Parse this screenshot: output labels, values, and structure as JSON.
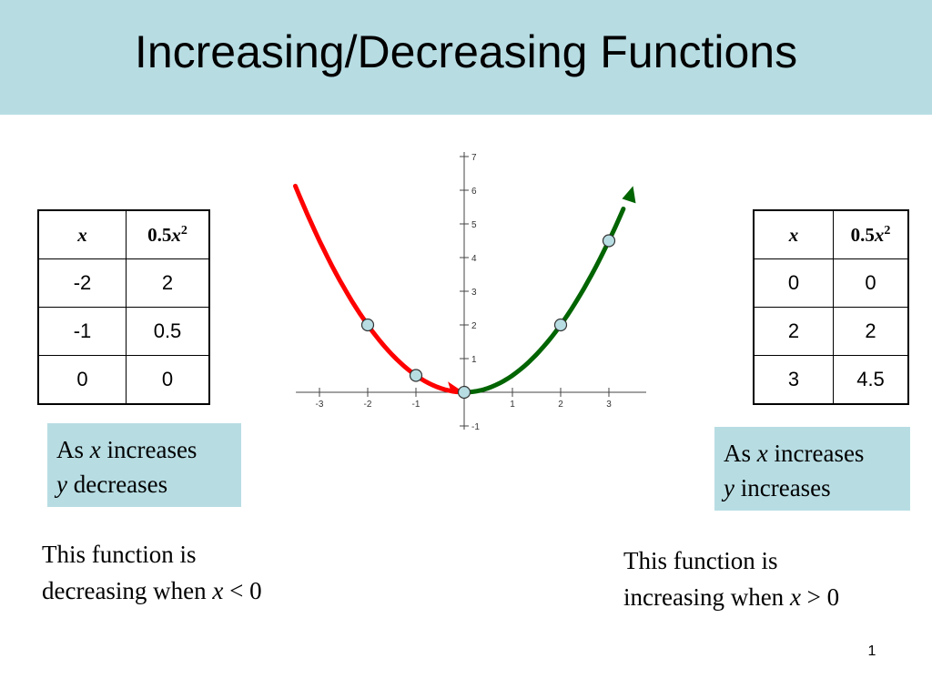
{
  "title": "Increasing/Decreasing Functions",
  "left_table": {
    "header": {
      "x": "x",
      "fx_coef": "0.5",
      "fx_var": "x",
      "fx_exp": "2"
    },
    "rows": [
      [
        "-2",
        "2"
      ],
      [
        "-1",
        "0.5"
      ],
      [
        "0",
        "0"
      ]
    ]
  },
  "right_table": {
    "header": {
      "x": "x",
      "fx_coef": "0.5",
      "fx_var": "x",
      "fx_exp": "2"
    },
    "rows": [
      [
        "0",
        "0"
      ],
      [
        "2",
        "2"
      ],
      [
        "3",
        "4.5"
      ]
    ]
  },
  "left_note": {
    "l1a": "As ",
    "l1b": "x",
    "l1c": " increases",
    "l2a": "y",
    "l2b": " decreases"
  },
  "right_note": {
    "l1a": "As ",
    "l1b": "x",
    "l1c": " increases",
    "l2a": "y",
    "l2b": " increases"
  },
  "left_desc": {
    "l1": "This function is",
    "l2a": "decreasing when ",
    "l2b": "x",
    "l2c": " < 0"
  },
  "right_desc": {
    "l1": "This function is",
    "l2a": "increasing when ",
    "l2b": "x",
    "l2c": " > 0"
  },
  "page_number": "1",
  "chart_data": {
    "type": "line",
    "function": "0.5x^2",
    "xlim": [
      -3.3,
      3.5
    ],
    "ylim": [
      -1,
      7
    ],
    "x_ticks": [
      -3,
      -2,
      -1,
      1,
      2,
      3
    ],
    "y_ticks": [
      -1,
      1,
      2,
      3,
      4,
      5,
      6,
      7
    ],
    "series": [
      {
        "color": "#ff0000",
        "x": [
          -3.5,
          -3,
          -2,
          -1,
          0
        ],
        "y": [
          6.125,
          4.5,
          2,
          0.5,
          0
        ]
      },
      {
        "color": "#006400",
        "x": [
          0,
          1,
          2,
          3,
          3.5
        ],
        "y": [
          0,
          0.5,
          2,
          4.5,
          6.125
        ]
      }
    ],
    "points": [
      {
        "x": -2,
        "y": 2
      },
      {
        "x": -1,
        "y": 0.5
      },
      {
        "x": 0,
        "y": 0
      },
      {
        "x": 2,
        "y": 2
      },
      {
        "x": 3,
        "y": 4.5
      }
    ],
    "colors": {
      "decreasing": "#ff0000",
      "increasing": "#006400",
      "point_fill": "#b7dde3"
    }
  }
}
